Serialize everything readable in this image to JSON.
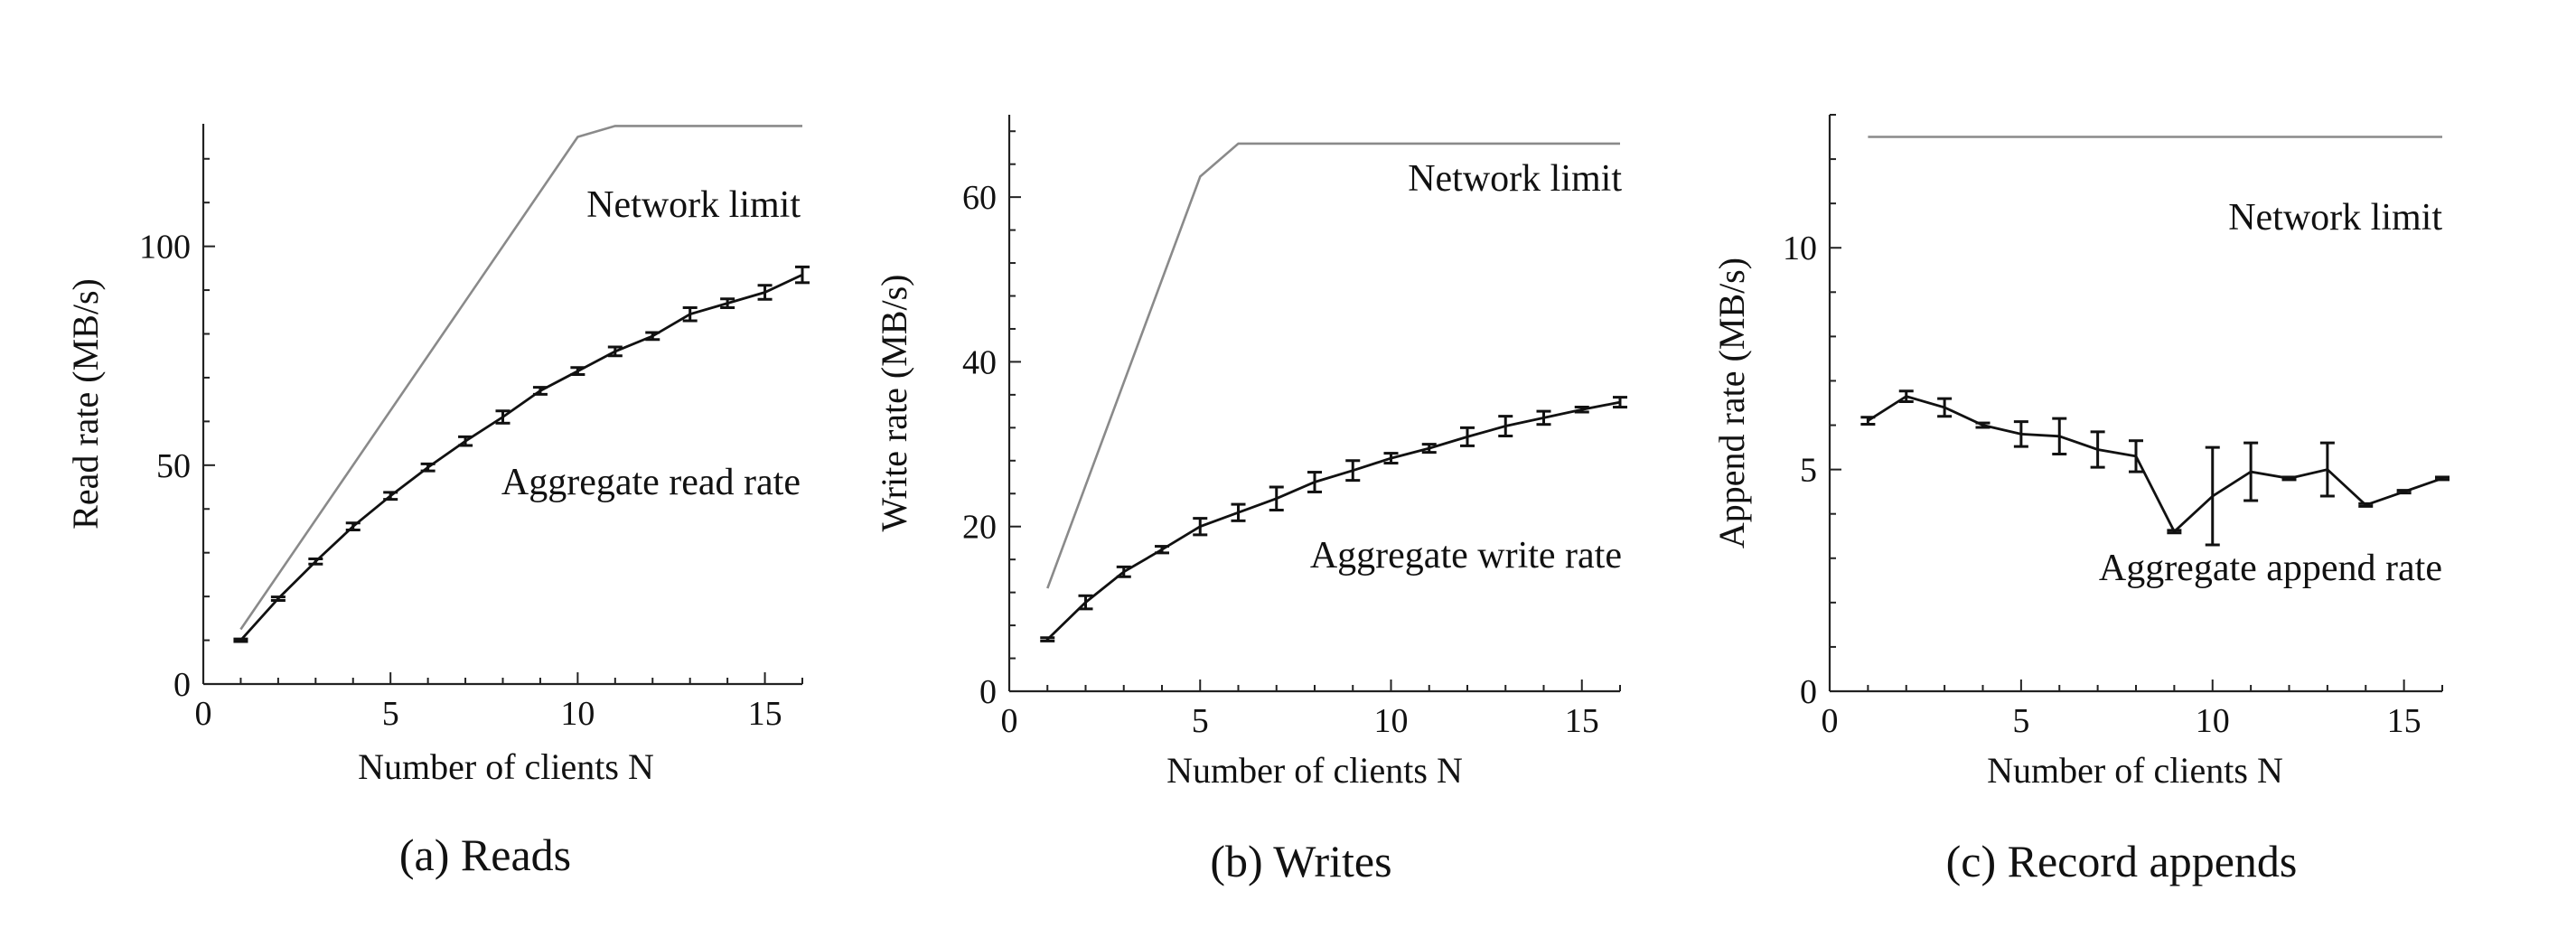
{
  "chart_data": [
    {
      "type": "line",
      "caption": "(a) Reads",
      "xlabel": "Number of clients N",
      "ylabel": "Read rate (MB/s)",
      "xlim": [
        0,
        16
      ],
      "ylim": [
        0,
        128
      ],
      "xticks": [
        0,
        5,
        10,
        15
      ],
      "yticks": [
        0,
        50,
        100
      ],
      "series": [
        {
          "name": "Network limit",
          "style": "limit",
          "x": [
            1,
            10,
            11,
            16
          ],
          "y": [
            12.5,
            125,
            127.5,
            127.5
          ]
        },
        {
          "name": "Aggregate read rate",
          "style": "measured",
          "x": [
            1,
            2,
            3,
            4,
            5,
            6,
            7,
            8,
            9,
            10,
            11,
            12,
            13,
            14,
            15,
            16
          ],
          "y": [
            10,
            19.5,
            28,
            36,
            43,
            49.5,
            55.5,
            61,
            67,
            71.5,
            76,
            79.5,
            84.5,
            87,
            89.5,
            93.5
          ],
          "err": [
            0.3,
            0.4,
            0.6,
            0.8,
            0.8,
            0.8,
            1,
            1.4,
            0.8,
            0.8,
            1,
            0.8,
            1.5,
            1,
            1.6,
            1.8
          ]
        }
      ]
    },
    {
      "type": "line",
      "caption": "(b) Writes",
      "xlabel": "Number of clients N",
      "ylabel": "Write rate (MB/s)",
      "xlim": [
        0,
        16
      ],
      "ylim": [
        0,
        70
      ],
      "xticks": [
        0,
        5,
        10,
        15
      ],
      "yticks": [
        0,
        20,
        40,
        60
      ],
      "series": [
        {
          "name": "Network limit",
          "style": "limit",
          "x": [
            1,
            5,
            6,
            16
          ],
          "y": [
            12.5,
            62.5,
            66.5,
            66.5
          ]
        },
        {
          "name": "Aggregate write rate",
          "style": "measured",
          "x": [
            1,
            2,
            3,
            4,
            5,
            6,
            7,
            8,
            9,
            10,
            11,
            12,
            13,
            14,
            15,
            16
          ],
          "y": [
            6.3,
            10.8,
            14.5,
            17.2,
            20,
            21.7,
            23.4,
            25.4,
            26.8,
            28.3,
            29.5,
            30.9,
            32.2,
            33.2,
            34.2,
            35.1
          ],
          "err": [
            0.2,
            0.8,
            0.6,
            0.4,
            1,
            1,
            1.4,
            1.2,
            1.2,
            0.6,
            0.5,
            1.1,
            1.2,
            0.8,
            0.3,
            0.6
          ]
        }
      ]
    },
    {
      "type": "line",
      "caption": "(c) Record appends",
      "xlabel": "Number of clients N",
      "ylabel": "Append rate (MB/s)",
      "xlim": [
        0,
        16
      ],
      "ylim": [
        0,
        13
      ],
      "xticks": [
        0,
        5,
        10,
        15
      ],
      "yticks": [
        0,
        5,
        10
      ],
      "series": [
        {
          "name": "Network limit",
          "style": "limit",
          "x": [
            1,
            16
          ],
          "y": [
            12.5,
            12.5
          ]
        },
        {
          "name": "Aggregate append rate",
          "style": "measured",
          "x": [
            1,
            2,
            3,
            4,
            5,
            6,
            7,
            8,
            9,
            10,
            11,
            12,
            13,
            14,
            15,
            16
          ],
          "y": [
            6.1,
            6.65,
            6.4,
            6.0,
            5.8,
            5.75,
            5.45,
            5.3,
            3.6,
            4.4,
            4.95,
            4.8,
            5.0,
            4.2,
            4.5,
            4.8
          ],
          "err": [
            0.08,
            0.12,
            0.2,
            0.05,
            0.28,
            0.4,
            0.4,
            0.35,
            0.03,
            1.1,
            0.65,
            0.03,
            0.6,
            0.03,
            0.03,
            0.03
          ]
        }
      ]
    }
  ]
}
